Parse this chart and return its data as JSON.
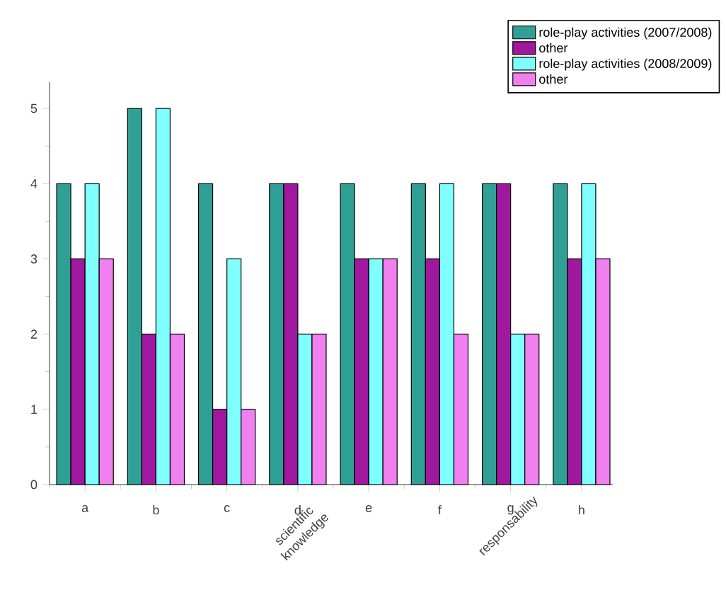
{
  "chart_data": {
    "type": "bar",
    "categories": [
      "a",
      "b",
      "c",
      "d",
      "e",
      "f",
      "g",
      "h"
    ],
    "series": [
      {
        "name": "role-play activities (2007/2008)",
        "color": "#30a096",
        "values": [
          4,
          5,
          4,
          4,
          4,
          4,
          4,
          4
        ]
      },
      {
        "name": "other",
        "color": "#a0189e",
        "values": [
          3,
          2,
          1,
          4,
          3,
          3,
          4,
          3
        ]
      },
      {
        "name": "role-play activities (2008/2009)",
        "color": "#80ffff",
        "values": [
          4,
          5,
          3,
          2,
          3,
          4,
          2,
          4
        ]
      },
      {
        "name": "other",
        "color": "#f080f0",
        "values": [
          3,
          2,
          1,
          2,
          3,
          2,
          2,
          3
        ]
      }
    ],
    "ylim": [
      0,
      5.35
    ],
    "yticks": [
      0,
      1,
      2,
      3,
      4,
      5
    ],
    "grid": false,
    "legend": "top right",
    "annotations": [
      "scientific knowledge",
      "responsability"
    ]
  }
}
